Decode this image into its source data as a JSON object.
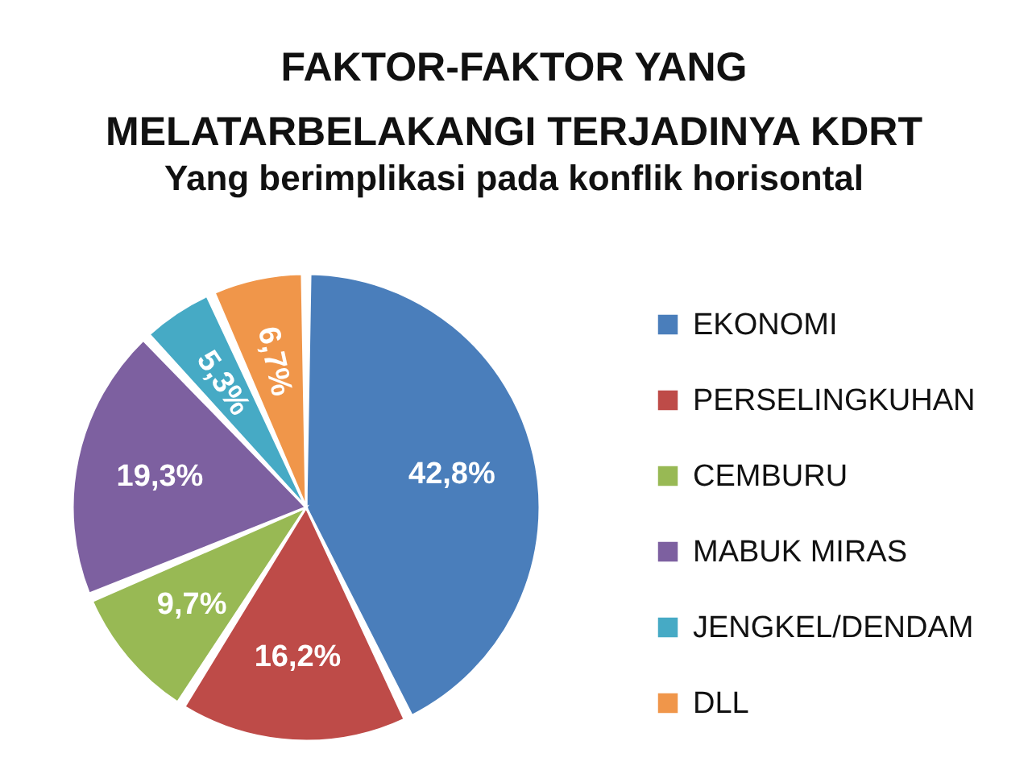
{
  "chart_data": {
    "type": "pie",
    "title": "FAKTOR-FAKTOR YANG\nMELATARBELAKANGI TERJADINYA KDRT",
    "subtitle": "Yang berimplikasi pada konflik horisontal",
    "categories": [
      "EKONOMI",
      "PERSELINGKUHAN",
      "CEMBURU",
      "MABUK MIRAS",
      "JENGKEL/DENDAM",
      "DLL"
    ],
    "values": [
      42.8,
      16.2,
      9.7,
      19.3,
      5.3,
      6.7
    ],
    "value_labels": [
      "42,8%",
      "16,2%",
      "9,7%",
      "19,3%",
      "5,3%",
      "6,7%"
    ],
    "colors": [
      "#4a7ebb",
      "#be4b48",
      "#98b954",
      "#7d60a0",
      "#46aac5",
      "#f0964a"
    ],
    "legend": "right"
  }
}
